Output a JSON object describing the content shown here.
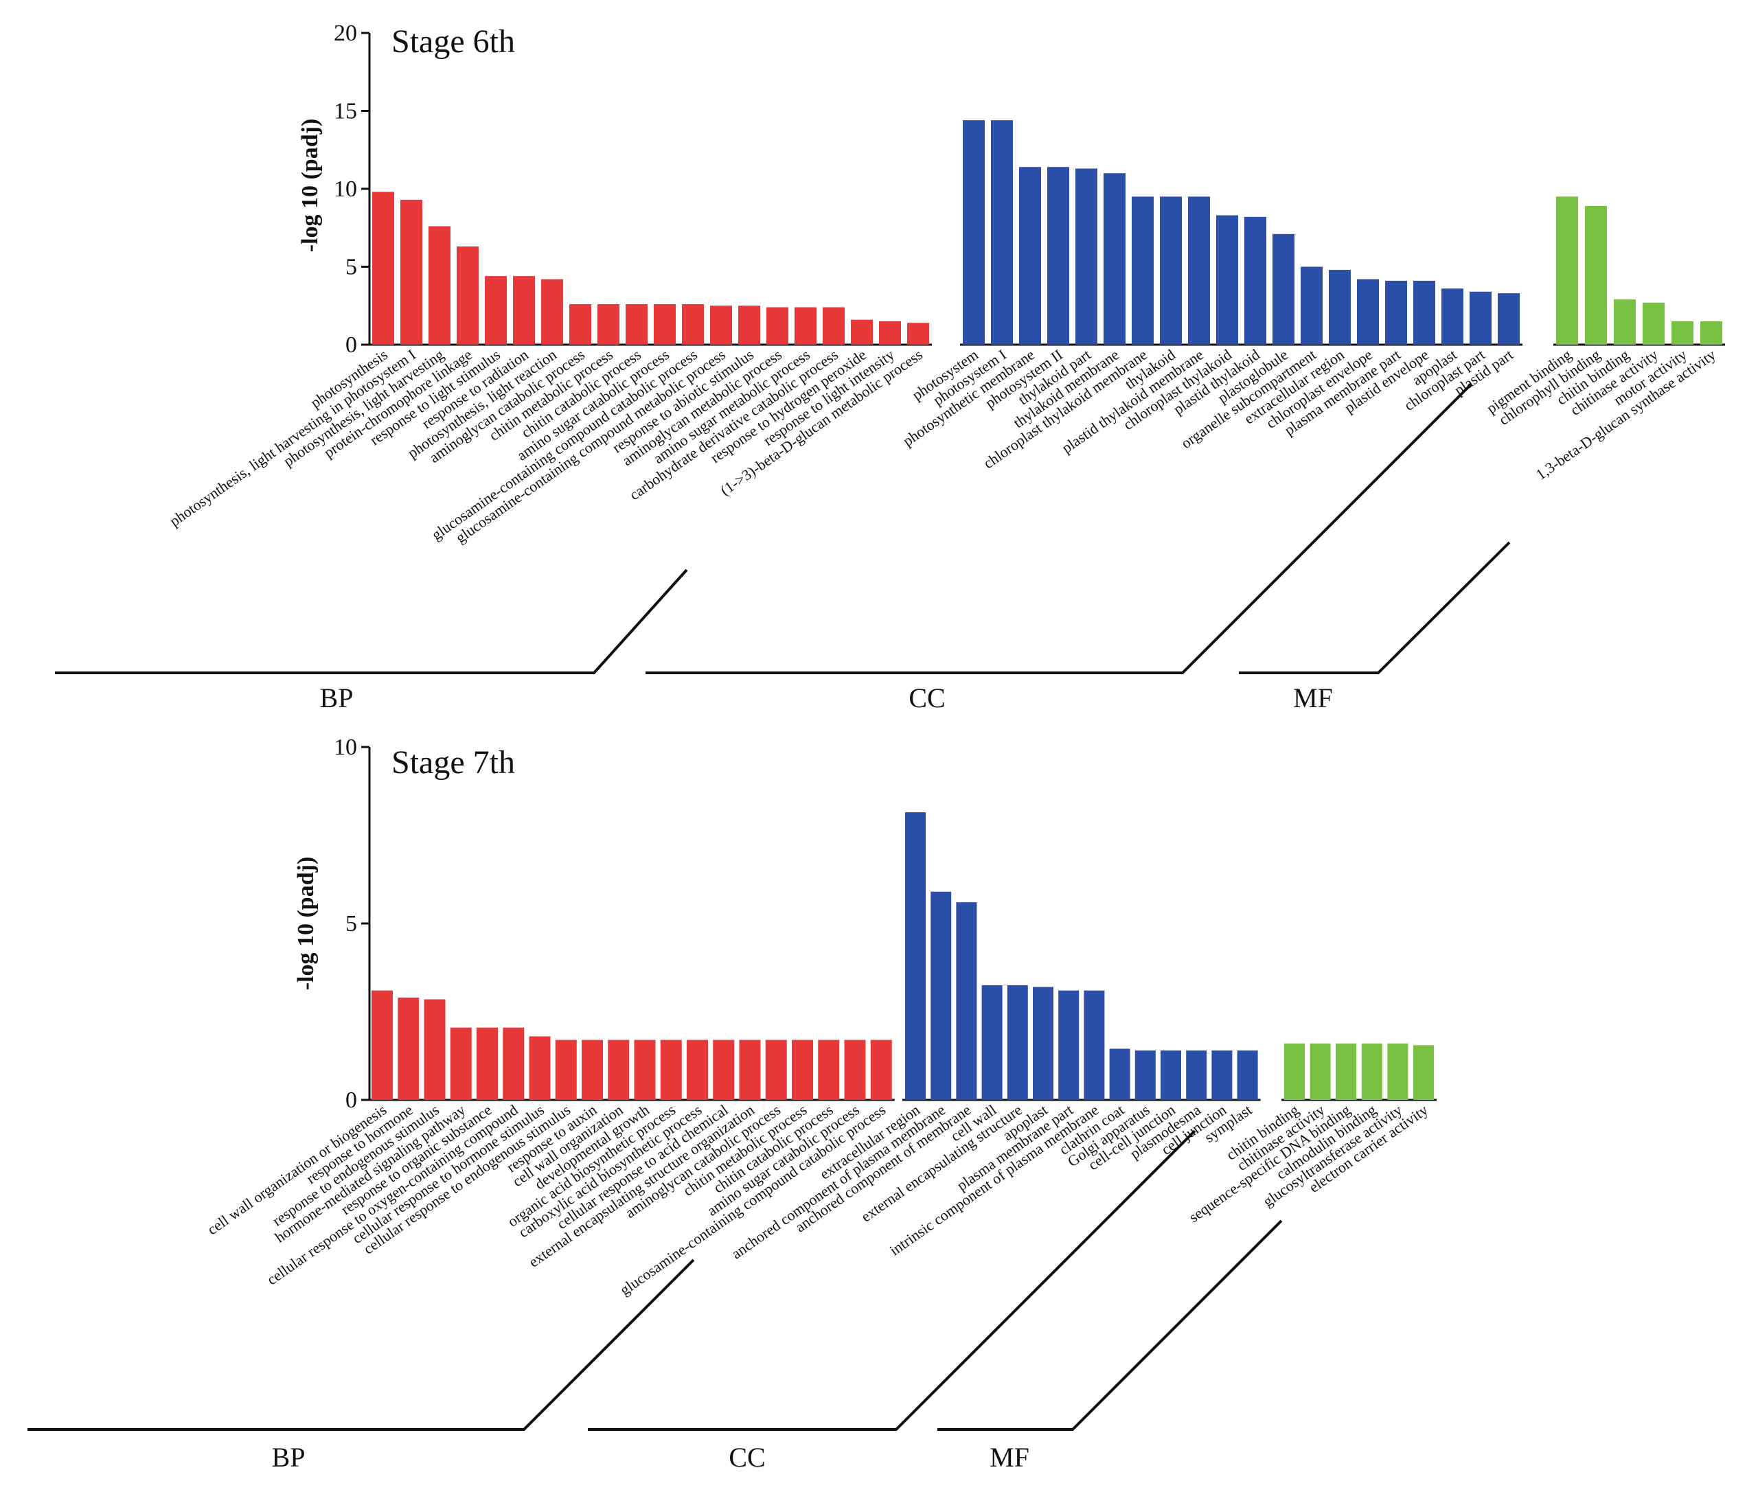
{
  "chart_data": [
    {
      "type": "bar",
      "title": "Stage 6th",
      "ylabel": "-log 10 (padj)",
      "ylim": [
        0,
        20
      ],
      "yticks": [
        0,
        5,
        10,
        15,
        20
      ],
      "colors": {
        "BP": "#e8393a",
        "CC": "#2b4ea8",
        "MF": "#79c142"
      },
      "groups": [
        {
          "name": "BP",
          "categories": [
            "photosynthesis",
            "photosynthesis, light harvesting in photosystem I",
            "photosynthesis, light harvesting",
            "protein-chromophore linkage",
            "response to light stimulus",
            "response to radiation",
            "photosynthesis, light reaction",
            "aminoglycan catabolic process",
            "chitin metabolic process",
            "chitin catabolic process",
            "amino sugar catabolic process",
            "glucosamine-containing compound catabolic process",
            "glucosamine-containing compound metabolic process",
            "response to abiotic stimulus",
            "aminoglycan metabolic process",
            "amino sugar metabolic process",
            "carbohydrate derivative catabolic process",
            "response to hydrogen peroxide",
            "response to light intensity",
            "(1->3)-beta-D-glucan metabolic process"
          ],
          "values": [
            9.8,
            9.3,
            7.6,
            6.3,
            4.4,
            4.4,
            4.2,
            2.6,
            2.6,
            2.6,
            2.6,
            2.6,
            2.5,
            2.5,
            2.4,
            2.4,
            2.4,
            1.6,
            1.5,
            1.4
          ]
        },
        {
          "name": "CC",
          "categories": [
            "photosystem",
            "photosystem I",
            "photosynthetic membrane",
            "photosystem II",
            "thylakoid part",
            "thylakoid membrane",
            "chloroplast thylakoid membrane",
            "thylakoid",
            "plastid thylakoid membrane",
            "chloroplast thylakoid",
            "plastid thylakoid",
            "plastoglobule",
            "organelle subcompartment",
            "extracellular region",
            "chloroplast envelope",
            "plasma membrane part",
            "plastid envelope",
            "apoplast",
            "chloroplast part",
            "plastid part"
          ],
          "values": [
            14.4,
            14.4,
            11.4,
            11.4,
            11.3,
            11.0,
            9.5,
            9.5,
            9.5,
            8.3,
            8.2,
            7.1,
            5.0,
            4.8,
            4.2,
            4.1,
            4.1,
            3.6,
            3.4,
            3.3
          ]
        },
        {
          "name": "MF",
          "categories": [
            "pigment binding",
            "chlorophyll binding",
            "chitin binding",
            "chitinase activity",
            "motor activity",
            "1,3-beta-D-glucan synthase activity"
          ],
          "values": [
            9.5,
            8.9,
            2.9,
            2.7,
            1.5,
            1.5
          ]
        }
      ]
    },
    {
      "type": "bar",
      "title": "Stage 7th",
      "ylabel": "-log 10 (padj)",
      "ylim": [
        0,
        10
      ],
      "yticks": [
        0,
        5,
        10
      ],
      "colors": {
        "BP": "#e8393a",
        "CC": "#2b4ea8",
        "MF": "#79c142"
      },
      "groups": [
        {
          "name": "BP",
          "categories": [
            "cell wall organization or biogenesis",
            "response to hormone",
            "response to endogenous stimulus",
            "hormone-mediated signaling pathway",
            "response to organic substance",
            "cellular response to oxygen-containing compound",
            "cellular response to hormone stimulus",
            "cellular response to endogenous stimulus",
            "response to auxin",
            "cell wall organization",
            "developmental growth",
            "organic acid biosynthetic process",
            "carboxylic acid biosynthetic process",
            "cellular response to acid chemical",
            "external encapsulating structure organization",
            "aminoglycan catabolic process",
            "chitin metabolic process",
            "chitin catabolic process",
            "amino sugar catabolic process",
            "glucosamine-containing compound catabolic process"
          ],
          "values": [
            3.1,
            2.9,
            2.85,
            2.05,
            2.05,
            2.05,
            1.8,
            1.7,
            1.7,
            1.7,
            1.7,
            1.7,
            1.7,
            1.7,
            1.7,
            1.7,
            1.7,
            1.7,
            1.7,
            1.7
          ]
        },
        {
          "name": "CC",
          "categories": [
            "extracellular region",
            "anchored component of plasma membrane",
            "anchored component of membrane",
            "cell wall",
            "external encapsulating structure",
            "apoplast",
            "plasma membrane part",
            "intrinsic component of plasma membrane",
            "clathrin coat",
            "Golgi apparatus",
            "cell-cell junction",
            "plasmodesma",
            "cell junction",
            "symplast"
          ],
          "values": [
            8.15,
            5.9,
            5.6,
            3.25,
            3.25,
            3.2,
            3.1,
            3.1,
            1.45,
            1.4,
            1.4,
            1.4,
            1.4,
            1.4
          ]
        },
        {
          "name": "MF",
          "categories": [
            "chitin binding",
            "chitinase activity",
            "sequence-specific DNA binding",
            "calmodulin binding",
            "glucosyltransferase activity",
            "electron carrier activity"
          ],
          "values": [
            1.6,
            1.6,
            1.6,
            1.6,
            1.6,
            1.55
          ]
        }
      ]
    }
  ]
}
